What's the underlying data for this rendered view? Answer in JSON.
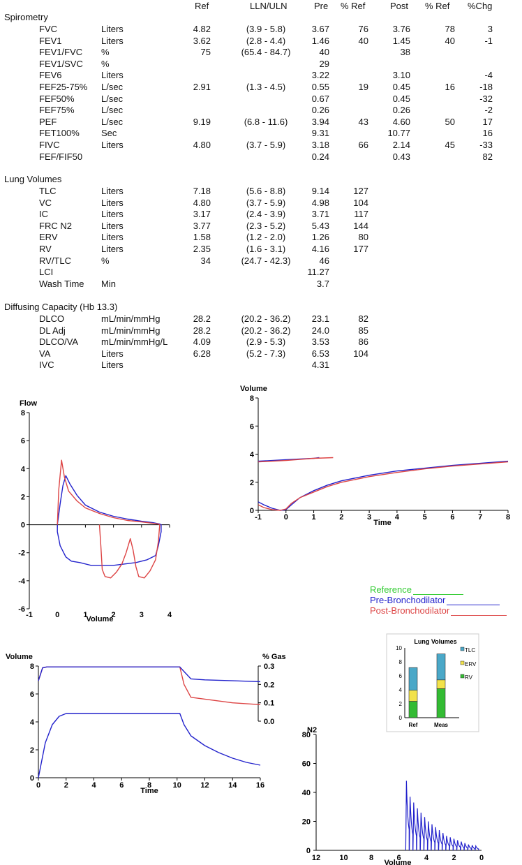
{
  "headers": {
    "ref": "Ref",
    "lln": "LLN/ULN",
    "pre": "Pre",
    "pref": "% Ref",
    "post": "Post",
    "postref": "% Ref",
    "chg": "%Chg"
  },
  "sections": {
    "spirometry": "Spirometry",
    "lung_volumes": "Lung Volumes",
    "diffusing": "Diffusing Capacity  (Hb 13.3)"
  },
  "spirometry": [
    {
      "name": "FVC",
      "unit": "Liters",
      "ref": "4.82",
      "lln": "(3.9 - 5.8)",
      "pre": "3.67",
      "pref": "76",
      "post": "3.76",
      "postref": "78",
      "chg": "3"
    },
    {
      "name": "FEV1",
      "unit": "Liters",
      "ref": "3.62",
      "lln": "(2.8 - 4.4)",
      "pre": "1.46",
      "pref": "40",
      "post": "1.45",
      "postref": "40",
      "chg": "-1"
    },
    {
      "name": "FEV1/FVC",
      "unit": "%",
      "ref": "75",
      "lln": "(65.4 - 84.7)",
      "pre": "40",
      "pref": "",
      "post": "38",
      "postref": "",
      "chg": ""
    },
    {
      "name": "FEV1/SVC",
      "unit": "%",
      "ref": "",
      "lln": "",
      "pre": "29",
      "pref": "",
      "post": "",
      "postref": "",
      "chg": ""
    },
    {
      "name": "FEV6",
      "unit": "Liters",
      "ref": "",
      "lln": "",
      "pre": "3.22",
      "pref": "",
      "post": "3.10",
      "postref": "",
      "chg": "-4"
    },
    {
      "name": "FEF25-75%",
      "unit": "L/sec",
      "ref": "2.91",
      "lln": "(1.3 - 4.5)",
      "pre": "0.55",
      "pref": "19",
      "post": "0.45",
      "postref": "16",
      "chg": "-18"
    },
    {
      "name": "FEF50%",
      "unit": "L/sec",
      "ref": "",
      "lln": "",
      "pre": "0.67",
      "pref": "",
      "post": "0.45",
      "postref": "",
      "chg": "-32"
    },
    {
      "name": "FEF75%",
      "unit": "L/sec",
      "ref": "",
      "lln": "",
      "pre": "0.26",
      "pref": "",
      "post": "0.26",
      "postref": "",
      "chg": "-2"
    },
    {
      "name": "PEF",
      "unit": "L/sec",
      "ref": "9.19",
      "lln": "(6.8 - 11.6)",
      "pre": "3.94",
      "pref": "43",
      "post": "4.60",
      "postref": "50",
      "chg": "17"
    },
    {
      "name": "FET100%",
      "unit": "Sec",
      "ref": "",
      "lln": "",
      "pre": "9.31",
      "pref": "",
      "post": "10.77",
      "postref": "",
      "chg": "16"
    },
    {
      "name": "FIVC",
      "unit": "Liters",
      "ref": "4.80",
      "lln": "(3.7 - 5.9)",
      "pre": "3.18",
      "pref": "66",
      "post": "2.14",
      "postref": "45",
      "chg": "-33"
    },
    {
      "name": "FEF/FIF50",
      "unit": "",
      "ref": "",
      "lln": "",
      "pre": "0.24",
      "pref": "",
      "post": "0.43",
      "postref": "",
      "chg": "82"
    }
  ],
  "lung_volumes": [
    {
      "name": "TLC",
      "unit": "Liters",
      "ref": "7.18",
      "lln": "(5.6 - 8.8)",
      "pre": "9.14",
      "pref": "127"
    },
    {
      "name": "VC",
      "unit": "Liters",
      "ref": "4.80",
      "lln": "(3.7 - 5.9)",
      "pre": "4.98",
      "pref": "104"
    },
    {
      "name": "IC",
      "unit": "Liters",
      "ref": "3.17",
      "lln": "(2.4 - 3.9)",
      "pre": "3.71",
      "pref": "117"
    },
    {
      "name": "FRC N2",
      "unit": "Liters",
      "ref": "3.77",
      "lln": "(2.3 - 5.2)",
      "pre": "5.43",
      "pref": "144"
    },
    {
      "name": "ERV",
      "unit": "Liters",
      "ref": "1.58",
      "lln": "(1.2 - 2.0)",
      "pre": "1.26",
      "pref": "80"
    },
    {
      "name": "RV",
      "unit": "Liters",
      "ref": "2.35",
      "lln": "(1.6 - 3.1)",
      "pre": "4.16",
      "pref": "177"
    },
    {
      "name": "RV/TLC",
      "unit": "%",
      "ref": "34",
      "lln": "(24.7 - 42.3)",
      "pre": "46",
      "pref": ""
    },
    {
      "name": "LCI",
      "unit": "",
      "ref": "",
      "lln": "",
      "pre": "11.27",
      "pref": ""
    },
    {
      "name": "Wash Time",
      "unit": "Min",
      "ref": "",
      "lln": "",
      "pre": "3.7",
      "pref": ""
    }
  ],
  "diffusing": [
    {
      "name": "DLCO",
      "unit": "mL/min/mmHg",
      "ref": "28.2",
      "lln": "(20.2 - 36.2)",
      "pre": "23.1",
      "pref": "82"
    },
    {
      "name": "DL Adj",
      "unit": "mL/min/mmHg",
      "ref": "28.2",
      "lln": "(20.2 - 36.2)",
      "pre": "24.0",
      "pref": "85"
    },
    {
      "name": "DLCO/VA",
      "unit": "mL/min/mmHg/L",
      "ref": "4.09",
      "lln": "(2.9 - 5.3)",
      "pre": "3.53",
      "pref": "86"
    },
    {
      "name": "VA",
      "unit": "Liters",
      "ref": "6.28",
      "lln": "(5.2 - 7.3)",
      "pre": "6.53",
      "pref": "104"
    },
    {
      "name": "IVC",
      "unit": "Liters",
      "ref": "",
      "lln": "",
      "pre": "4.31",
      "pref": ""
    }
  ],
  "colors": {
    "reference": "#33cc33",
    "pre": "#2222cc",
    "post": "#dd4444",
    "tlc": "#4aa8c8",
    "erv": "#f2e24a",
    "rv": "#33bb33"
  },
  "legend": {
    "reference": "Reference",
    "pre": "Pre-Bronchodilator",
    "post": "Post-Bronchodilator"
  },
  "chart_data": [
    {
      "id": "flow_volume",
      "type": "line",
      "title": "",
      "ylabel": "Flow",
      "xlabel": "Volume",
      "xlim": [
        -1,
        4
      ],
      "ylim": [
        -6,
        8
      ],
      "xticks": [
        "-1",
        "0",
        "1",
        "2",
        "3",
        "4"
      ],
      "yticks": [
        "-6",
        "-4",
        "-2",
        "0",
        "2",
        "4",
        "6",
        "8"
      ],
      "series": [
        {
          "name": "Pre-Bronchodilator",
          "x": [
            0,
            0.1,
            0.2,
            0.3,
            0.45,
            0.7,
            1.0,
            1.5,
            2.0,
            2.5,
            3.0,
            3.4,
            3.65,
            3.7,
            3.7,
            3.6,
            3.5,
            3.2,
            2.8,
            2.4,
            2.0,
            1.6,
            1.2,
            0.8,
            0.5,
            0.3,
            0.1,
            0.0,
            0.0
          ],
          "y": [
            0,
            1.5,
            2.8,
            3.5,
            2.9,
            2.1,
            1.4,
            0.9,
            0.6,
            0.4,
            0.25,
            0.15,
            0.05,
            0,
            -0.5,
            -1.5,
            -2.2,
            -2.5,
            -2.7,
            -2.8,
            -2.9,
            -2.9,
            -2.9,
            -2.7,
            -2.6,
            -2.3,
            -1.5,
            -0.5,
            0
          ]
        },
        {
          "name": "Post-Bronchodilator",
          "x": [
            0,
            0.05,
            0.15,
            0.25,
            0.4,
            0.7,
            1.0,
            1.5,
            2.0,
            2.5,
            3.0,
            3.4,
            3.6,
            3.65,
            3.6,
            3.5,
            3.3,
            3.1,
            2.9,
            2.8,
            2.7,
            2.6,
            2.45,
            2.3,
            2.1,
            1.9,
            1.7,
            1.6,
            1.55,
            1.5
          ],
          "y": [
            0,
            2.5,
            4.6,
            3.4,
            2.4,
            1.7,
            1.2,
            0.8,
            0.5,
            0.3,
            0.2,
            0.1,
            0.05,
            0,
            -1.2,
            -2.5,
            -3.3,
            -3.8,
            -3.7,
            -3.0,
            -1.8,
            -1.0,
            -2.0,
            -2.8,
            -3.4,
            -3.8,
            -3.7,
            -3.2,
            -1.5,
            0
          ]
        }
      ]
    },
    {
      "id": "volume_time",
      "type": "line",
      "ylabel": "Volume",
      "xlabel": "Time",
      "xlim": [
        -1,
        8
      ],
      "ylim": [
        0,
        8
      ],
      "xticks": [
        "-1",
        "0",
        "1",
        "2",
        "3",
        "4",
        "5",
        "6",
        "7",
        "8"
      ],
      "yticks": [
        "0",
        "2",
        "4",
        "6",
        "8"
      ],
      "series": [
        {
          "name": "Pre-Bronchodilator",
          "x": [
            -1,
            -0.8,
            -0.5,
            -0.2,
            0,
            0.2,
            0.5,
            1,
            1.5,
            2,
            3,
            4,
            5,
            6,
            7,
            8
          ],
          "y": [
            0.6,
            0.4,
            0.15,
            0.0,
            0.05,
            0.4,
            0.9,
            1.4,
            1.8,
            2.1,
            2.5,
            2.8,
            3.0,
            3.2,
            3.35,
            3.5
          ]
        },
        {
          "name": "Post-Bronchodilator",
          "x": [
            -1,
            -0.8,
            -0.5,
            -0.2,
            0,
            0.2,
            0.5,
            1,
            1.5,
            2,
            3,
            4,
            5,
            6,
            7,
            8
          ],
          "y": [
            0.4,
            0.2,
            0.05,
            0.0,
            0.1,
            0.5,
            0.9,
            1.3,
            1.7,
            2.0,
            2.4,
            2.7,
            2.95,
            3.15,
            3.3,
            3.45
          ]
        },
        {
          "name": "Pre-Bronchodilator inspiration",
          "x": [
            -1,
            0,
            1,
            1.2
          ],
          "y": [
            3.5,
            3.6,
            3.7,
            3.75
          ]
        },
        {
          "name": "Post-Bronchodilator inspiration",
          "x": [
            -1,
            0,
            1,
            1.7
          ],
          "y": [
            3.45,
            3.55,
            3.7,
            3.75
          ]
        }
      ]
    },
    {
      "id": "washout_volume",
      "type": "line",
      "ylabel": "Volume",
      "xlabel": "Time",
      "y2label": "% Gas",
      "xlim": [
        0,
        16
      ],
      "ylim": [
        0,
        8
      ],
      "y2lim": [
        0,
        0.3
      ],
      "xticks": [
        "0",
        "2",
        "4",
        "6",
        "8",
        "10",
        "12",
        "14",
        "16"
      ],
      "yticks": [
        "0",
        "2",
        "4",
        "6",
        "8"
      ],
      "y2ticks": [
        "0.0",
        "0.1",
        "0.2",
        "0.3"
      ],
      "series": [
        {
          "name": "Volume",
          "x": [
            0,
            0.5,
            1,
            1.5,
            2,
            4,
            6,
            8,
            10.2,
            10.5,
            11,
            12,
            13,
            14,
            15,
            16
          ],
          "y": [
            0,
            2.5,
            3.8,
            4.4,
            4.6,
            4.6,
            4.6,
            4.6,
            4.6,
            3.8,
            3.0,
            2.3,
            1.8,
            1.4,
            1.1,
            0.9
          ]
        },
        {
          "name": "Gas Pre",
          "x": [
            0,
            0.3,
            0.6,
            1,
            2,
            4,
            6,
            8,
            10.2,
            10.5,
            11,
            12,
            14,
            16
          ],
          "y": [
            0.22,
            0.29,
            0.295,
            0.295,
            0.295,
            0.295,
            0.295,
            0.295,
            0.295,
            0.27,
            0.23,
            0.225,
            0.22,
            0.215
          ]
        },
        {
          "name": "Gas Post",
          "x": [
            0,
            0.3,
            0.6,
            1,
            2,
            4,
            6,
            8,
            10.2,
            10.5,
            11,
            12,
            14,
            16
          ],
          "y": [
            0.22,
            0.29,
            0.295,
            0.295,
            0.295,
            0.295,
            0.295,
            0.295,
            0.295,
            0.2,
            0.13,
            0.12,
            0.1,
            0.09
          ]
        }
      ]
    },
    {
      "id": "lung_volumes_bar",
      "type": "bar",
      "title": "Lung Volumes",
      "categories": [
        "Ref",
        "Meas"
      ],
      "ylim": [
        0,
        10
      ],
      "yticks": [
        "0",
        "2",
        "4",
        "6",
        "8",
        "10"
      ],
      "series": [
        {
          "name": "RV",
          "values": [
            2.35,
            4.16
          ]
        },
        {
          "name": "ERV",
          "values": [
            1.58,
            1.26
          ]
        },
        {
          "name": "TLC",
          "values": [
            3.25,
            3.72
          ]
        }
      ]
    },
    {
      "id": "n2_washout",
      "type": "line",
      "ylabel": "N2",
      "xlabel": "Volume",
      "xlim": [
        12,
        0
      ],
      "ylim": [
        0,
        80
      ],
      "xticks": [
        "12",
        "10",
        "8",
        "6",
        "4",
        "2",
        "0"
      ],
      "yticks": [
        "0",
        "20",
        "40",
        "60",
        "80"
      ],
      "peaks": [
        48,
        37,
        33,
        29,
        26,
        23,
        20,
        18,
        16,
        14,
        12,
        10,
        9,
        8,
        7,
        6,
        5,
        4,
        3.5,
        3
      ]
    }
  ]
}
